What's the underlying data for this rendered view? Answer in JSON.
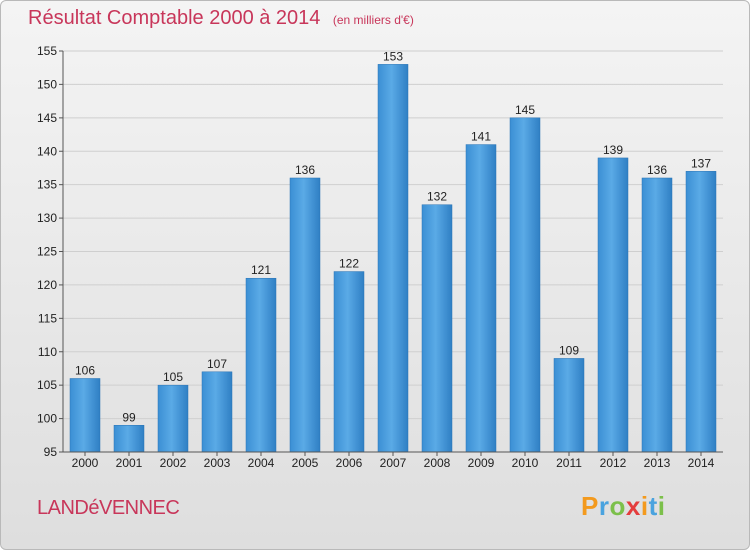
{
  "chart_data": {
    "type": "bar",
    "title": "Résultat Comptable 2000 à 2014",
    "subtitle": "(en milliers d'€)",
    "categories": [
      "2000",
      "2001",
      "2002",
      "2003",
      "2004",
      "2005",
      "2006",
      "2007",
      "2008",
      "2009",
      "2010",
      "2011",
      "2012",
      "2013",
      "2014"
    ],
    "values": [
      106,
      99,
      105,
      107,
      121,
      136,
      122,
      153,
      132,
      141,
      145,
      109,
      139,
      136,
      137
    ],
    "ylim": [
      95,
      155
    ],
    "yticks": [
      95,
      100,
      105,
      110,
      115,
      120,
      125,
      130,
      135,
      140,
      145,
      150,
      155
    ],
    "xlabel": "",
    "ylabel": "",
    "grid": true,
    "bar_color": "#4a9ad8"
  },
  "commune": "LANDéVENNEC",
  "logo": {
    "text": "Proxiti",
    "letters": [
      {
        "char": "P",
        "color": "#f39a1e"
      },
      {
        "char": "r",
        "color": "#4aa3df"
      },
      {
        "char": "o",
        "color": "#7cc04b"
      },
      {
        "char": "x",
        "color": "#e43d3d"
      },
      {
        "char": "i",
        "color": "#f39a1e"
      },
      {
        "char": "t",
        "color": "#4aa3df"
      },
      {
        "char": "i",
        "color": "#7cc04b"
      }
    ]
  }
}
